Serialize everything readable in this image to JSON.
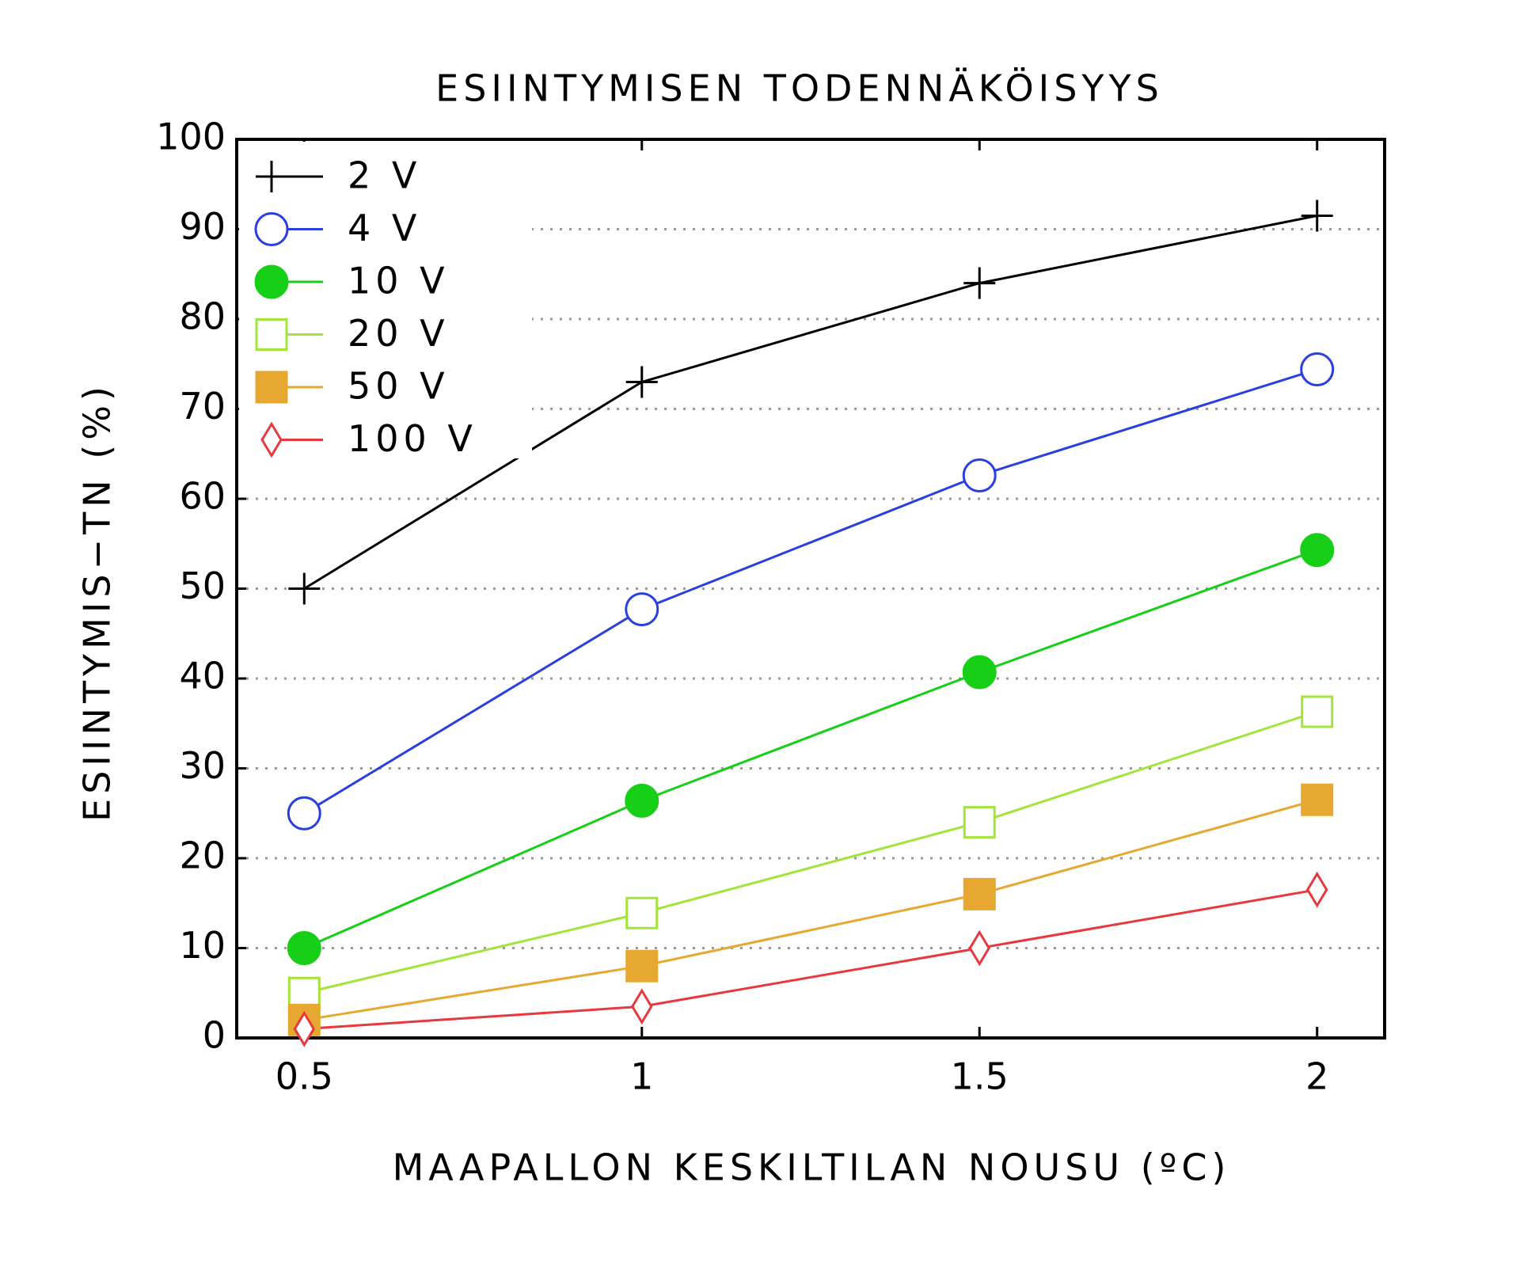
{
  "chart_data": {
    "type": "line",
    "title": "ESIINTYMISEN TODENNÄKÖISYYS",
    "x_label": "MAAPALLON KESKILTILAN NOUSU (ºC)",
    "y_label": "ESIINTYMIS−TN (%)",
    "x": [
      0.5,
      1,
      1.5,
      2
    ],
    "xlim": [
      0.4,
      2.1
    ],
    "xticks": [
      0.5,
      1,
      1.5,
      2
    ],
    "ylim": [
      0,
      100
    ],
    "yticks": [
      0,
      10,
      20,
      30,
      40,
      50,
      60,
      70,
      80,
      90,
      100
    ],
    "grid": true,
    "legend": "upper left",
    "series": [
      {
        "name": "2 V",
        "color": "#000000",
        "marker": "plus",
        "values": [
          50,
          73,
          84,
          91.5
        ]
      },
      {
        "name": "4 V",
        "color": "#2a3fe0",
        "marker": "circle-open",
        "values": [
          25,
          47.7,
          62.6,
          74.4
        ]
      },
      {
        "name": "10 V",
        "color": "#16cf16",
        "marker": "circle-filled",
        "values": [
          10,
          26.4,
          40.7,
          54.3
        ]
      },
      {
        "name": "20 V",
        "color": "#a3e43a",
        "marker": "square-open",
        "values": [
          5,
          13.9,
          24,
          36.3
        ]
      },
      {
        "name": "50 V",
        "color": "#e6a830",
        "marker": "square-filled",
        "values": [
          2,
          8,
          16,
          26.5
        ]
      },
      {
        "name": "100 V",
        "color": "#e8383d",
        "marker": "diamond-open",
        "values": [
          1,
          3.5,
          10,
          16.5
        ]
      }
    ]
  }
}
